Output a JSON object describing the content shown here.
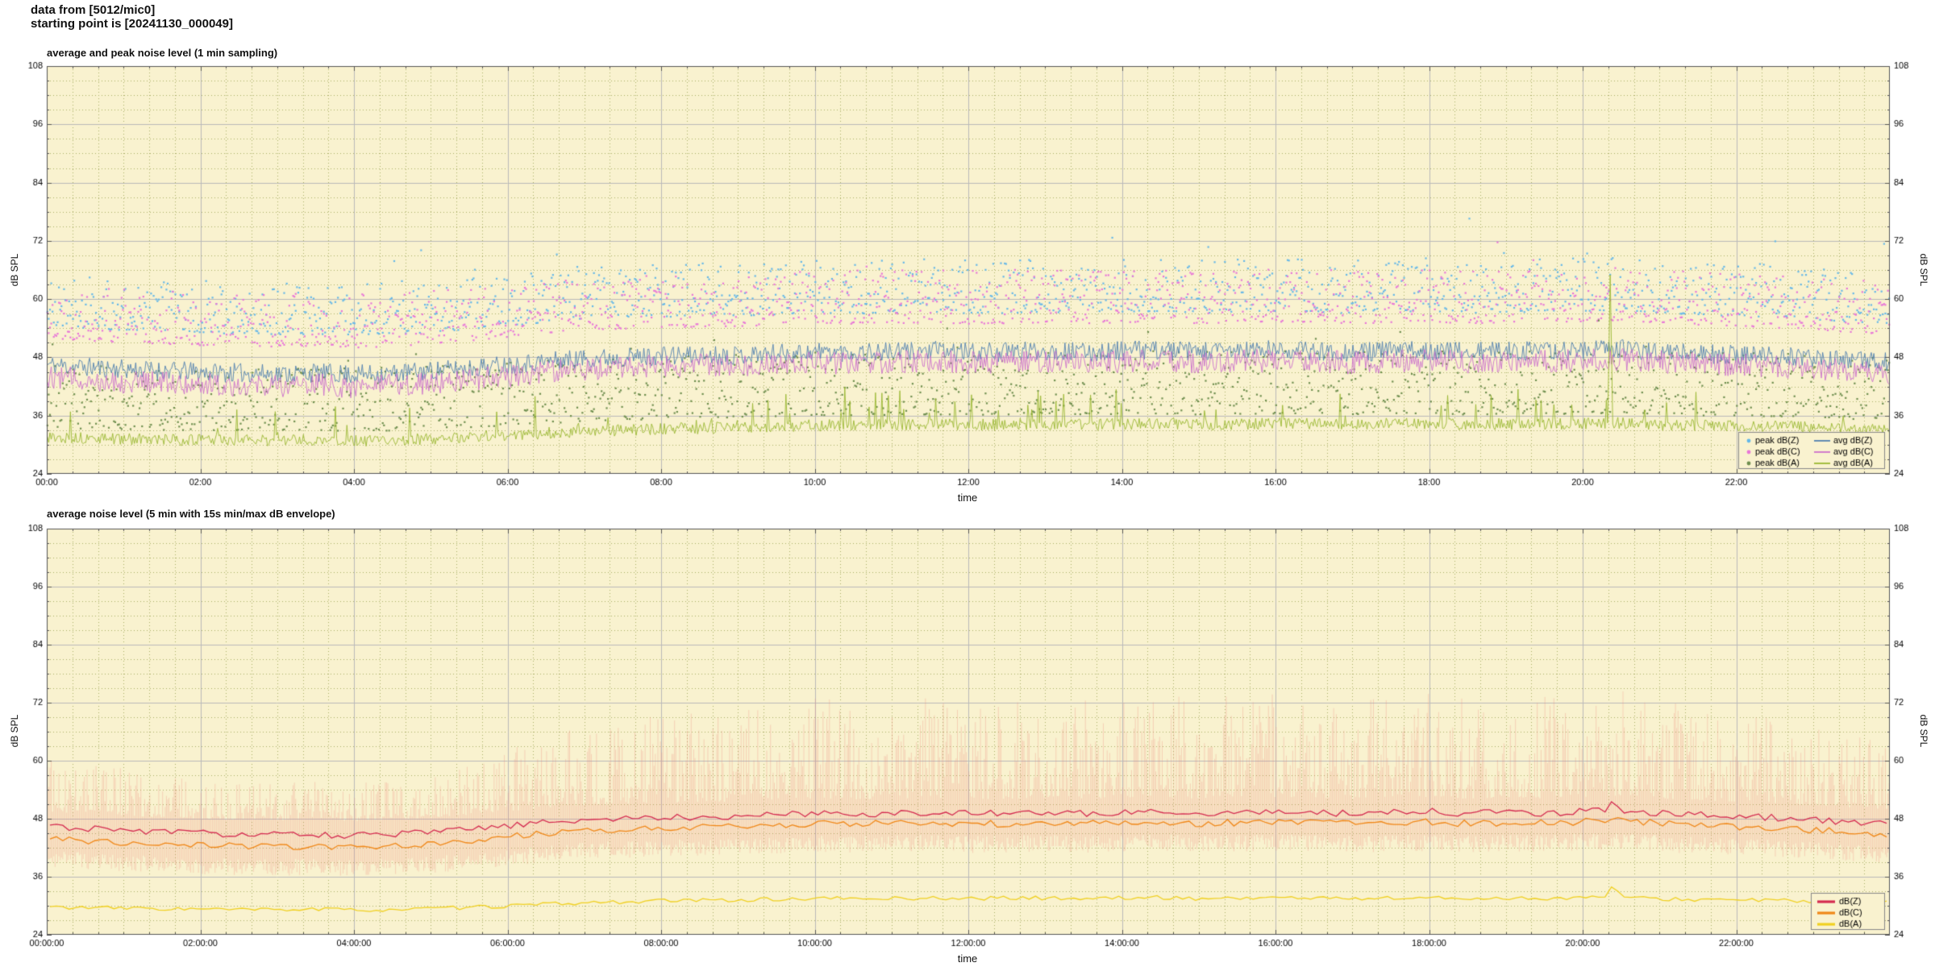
{
  "header": {
    "line1": "data from [5012/mic0]",
    "line2": "starting point is [20241130_000049]"
  },
  "style": {
    "plot_bg": "#f9f2cf",
    "page_bg": "#ffffff",
    "major_grid": "#b9b9b9",
    "minor_grid": "#a8ae66",
    "axis": "#555555",
    "text": "#000000",
    "legend_border": "#888888"
  },
  "chart_data": [
    {
      "type": "scatter",
      "title": "average and peak noise level (1 min sampling)",
      "xlabel": "time",
      "ylabel": "dB SPL",
      "ylabel_right": "dB SPL",
      "ylim": [
        24,
        108
      ],
      "yticks": [
        24,
        36,
        48,
        60,
        72,
        84,
        96,
        108
      ],
      "xlim_hours": [
        0,
        24
      ],
      "xtick_hours": [
        0,
        2,
        4,
        6,
        8,
        10,
        12,
        14,
        16,
        18,
        20,
        22
      ],
      "xtick_labels": [
        "00:00",
        "02:00",
        "04:00",
        "06:00",
        "08:00",
        "10:00",
        "12:00",
        "14:00",
        "16:00",
        "18:00",
        "20:00",
        "22:00"
      ],
      "samples": 1440,
      "grid": true,
      "legend_position": "bottom-right",
      "series": [
        {
          "name": "avg dB(Z)",
          "color": "#5080b0",
          "width": 0.9,
          "noise": 2.0,
          "seed": 11,
          "anchors": [
            46.5,
            46.0,
            45.6,
            45.3,
            45.0,
            44.8,
            44.6,
            44.8,
            44.5,
            44.7,
            45.2,
            45.8,
            46.5,
            47.2,
            47.8,
            48.0,
            48.3,
            48.4,
            48.5,
            48.8,
            49.2,
            49.0,
            49.1,
            49.4,
            49.0,
            49.1,
            49.4,
            49.0,
            49.4,
            49.5,
            49.1,
            49.4,
            49.5,
            49.4,
            49.0,
            49.4,
            49.5,
            49.1,
            49.4,
            49.2,
            49.5,
            49.8,
            49.2,
            48.8,
            48.5,
            48.2,
            47.8,
            47.3,
            47.0
          ]
        },
        {
          "name": "avg dB(C)",
          "color": "#cc70cc",
          "width": 0.9,
          "noise": 2.4,
          "seed": 12,
          "anchors": [
            44.0,
            43.5,
            43.0,
            42.8,
            42.5,
            42.3,
            42.2,
            42.4,
            42.0,
            42.2,
            42.8,
            43.4,
            44.2,
            45.0,
            45.6,
            45.9,
            46.2,
            46.3,
            46.4,
            46.7,
            47.0,
            46.9,
            47.0,
            47.2,
            46.9,
            47.0,
            47.2,
            46.9,
            47.2,
            47.3,
            47.0,
            47.2,
            47.3,
            47.2,
            46.9,
            47.2,
            47.3,
            47.0,
            47.2,
            47.1,
            47.4,
            47.6,
            47.1,
            46.7,
            46.4,
            46.1,
            45.7,
            45.2,
            44.8
          ]
        },
        {
          "name": "avg dB(A)",
          "color": "#9ab832",
          "width": 0.9,
          "noise": 1.2,
          "seed": 13,
          "spikes": {
            "p_base": 0.02,
            "p_day": 0.035,
            "amp": 6.5
          },
          "anchors": [
            31.5,
            31.3,
            31.2,
            31.0,
            31.0,
            30.9,
            30.9,
            31.0,
            30.8,
            30.9,
            31.2,
            31.5,
            32.0,
            32.4,
            32.8,
            33.0,
            33.3,
            33.4,
            33.6,
            33.8,
            34.0,
            34.0,
            34.1,
            34.2,
            34.1,
            34.2,
            34.3,
            34.2,
            34.3,
            34.4,
            34.2,
            34.3,
            34.4,
            34.3,
            34.2,
            34.3,
            34.4,
            34.2,
            34.3,
            34.2,
            34.4,
            34.5,
            34.1,
            34.0,
            33.9,
            33.8,
            33.6,
            33.3,
            33.0
          ]
        }
      ],
      "scatter": [
        {
          "name": "peak dB(Z)",
          "color": "#66b8e8",
          "ref": 0,
          "offset": 8,
          "spread": 11,
          "pow": 1.6,
          "outlier_p": 0.01,
          "outlier_amp": 7,
          "seed": 21
        },
        {
          "name": "peak dB(C)",
          "color": "#e878d8",
          "ref": 1,
          "offset": 8,
          "spread": 11,
          "pow": 1.6,
          "outlier_p": 0.008,
          "outlier_amp": 6,
          "seed": 22
        },
        {
          "name": "peak dB(A)",
          "color": "#6f8f4f",
          "ref": 2,
          "offset": 2,
          "spread": 13,
          "pow": 1.4,
          "outlier_p": 0.012,
          "outlier_amp": 6,
          "seed": 23
        }
      ],
      "events": [
        {
          "series": 2,
          "hour": 20.35,
          "value": 65.0,
          "shoulder": 50.0
        }
      ],
      "legend": {
        "cols": 2,
        "entries": [
          {
            "label": "peak dB(Z)",
            "color": "#66b8e8",
            "marker": "dot"
          },
          {
            "label": "avg dB(Z)",
            "color": "#5080b0",
            "marker": "line"
          },
          {
            "label": "peak dB(C)",
            "color": "#e878d8",
            "marker": "dot"
          },
          {
            "label": "avg dB(C)",
            "color": "#cc70cc",
            "marker": "line"
          },
          {
            "label": "peak dB(A)",
            "color": "#6f8f4f",
            "marker": "dot"
          },
          {
            "label": "avg dB(A)",
            "color": "#9ab832",
            "marker": "line"
          }
        ]
      }
    },
    {
      "type": "line",
      "title": "average noise level (5 min with 15s min/max dB envelope)",
      "xlabel": "time",
      "ylabel": "dB SPL",
      "ylabel_right": "dB SPL",
      "ylim": [
        24,
        108
      ],
      "yticks": [
        24,
        36,
        48,
        60,
        72,
        84,
        96,
        108
      ],
      "xlim_hours": [
        0,
        24
      ],
      "xtick_hours": [
        0,
        2,
        4,
        6,
        8,
        10,
        12,
        14,
        16,
        18,
        20,
        22
      ],
      "xtick_labels": [
        "00:00:00",
        "02:00:00",
        "04:00:00",
        "06:00:00",
        "08:00:00",
        "10:00:00",
        "12:00:00",
        "14:00:00",
        "16:00:00",
        "18:00:00",
        "20:00:00",
        "22:00:00"
      ],
      "samples": 288,
      "grid": true,
      "legend_position": "bottom-right",
      "envelope": {
        "color": "rgba(240,128,118,0.30)",
        "seed": 41,
        "hi_ref": 0,
        "lo_ref": 1,
        "hi_base": 3.0,
        "hi_rand_base": 8.0,
        "hi_rand_day": 14.0,
        "lo_base": 2.5,
        "lo_rand": 3.5
      },
      "series": [
        {
          "name": "dB(Z)",
          "color": "#d42a50",
          "width": 1.3,
          "noise": 0.7,
          "seed": 31,
          "anchors": [
            46.5,
            46.0,
            45.6,
            45.3,
            45.0,
            44.8,
            44.6,
            44.8,
            44.5,
            44.7,
            45.2,
            45.8,
            46.5,
            47.2,
            47.8,
            48.0,
            48.3,
            48.4,
            48.5,
            48.8,
            49.2,
            49.0,
            49.1,
            49.4,
            49.0,
            49.1,
            49.4,
            49.0,
            49.4,
            49.5,
            49.1,
            49.4,
            49.5,
            49.4,
            49.0,
            49.4,
            49.5,
            49.1,
            49.4,
            49.2,
            49.5,
            49.8,
            49.2,
            48.8,
            48.5,
            48.2,
            47.8,
            47.3,
            47.0
          ]
        },
        {
          "name": "dB(C)",
          "color": "#f08818",
          "width": 1.3,
          "noise": 0.7,
          "seed": 32,
          "anchors": [
            44.0,
            43.5,
            43.0,
            42.8,
            42.5,
            42.3,
            42.2,
            42.4,
            42.0,
            42.2,
            42.8,
            43.4,
            44.2,
            45.0,
            45.6,
            45.9,
            46.2,
            46.3,
            46.4,
            46.7,
            47.0,
            46.9,
            47.0,
            47.2,
            46.9,
            47.0,
            47.2,
            46.9,
            47.2,
            47.3,
            47.0,
            47.2,
            47.3,
            47.2,
            46.9,
            47.2,
            47.3,
            47.0,
            47.2,
            47.1,
            47.4,
            47.6,
            47.1,
            46.7,
            46.4,
            46.1,
            45.7,
            45.2,
            44.8
          ]
        },
        {
          "name": "dB(A)",
          "color": "#f0d020",
          "width": 1.3,
          "noise": 0.4,
          "seed": 33,
          "anchors": [
            29.8,
            29.6,
            29.5,
            29.4,
            29.3,
            29.2,
            29.2,
            29.3,
            29.1,
            29.2,
            29.4,
            29.6,
            30.0,
            30.3,
            30.6,
            30.8,
            31.0,
            31.1,
            31.2,
            31.3,
            31.5,
            31.5,
            31.5,
            31.6,
            31.5,
            31.6,
            31.6,
            31.5,
            31.6,
            31.7,
            31.5,
            31.6,
            31.7,
            31.6,
            31.5,
            31.6,
            31.6,
            31.5,
            31.6,
            31.5,
            31.7,
            31.7,
            31.4,
            31.3,
            31.2,
            31.1,
            31.0,
            30.8,
            30.6
          ]
        }
      ],
      "events": [
        {
          "series": 0,
          "hour": 20.3,
          "value": 51.5,
          "shoulder": 50.5
        },
        {
          "series": 2,
          "hour": 20.33,
          "value": 33.9,
          "shoulder": 33.0
        }
      ],
      "legend": {
        "cols": 1,
        "entries": [
          {
            "label": "dB(Z)",
            "color": "#d42a50",
            "marker": "thickline"
          },
          {
            "label": "dB(C)",
            "color": "#f08818",
            "marker": "thickline"
          },
          {
            "label": "dB(A)",
            "color": "#f0d020",
            "marker": "thickline"
          }
        ]
      }
    }
  ]
}
